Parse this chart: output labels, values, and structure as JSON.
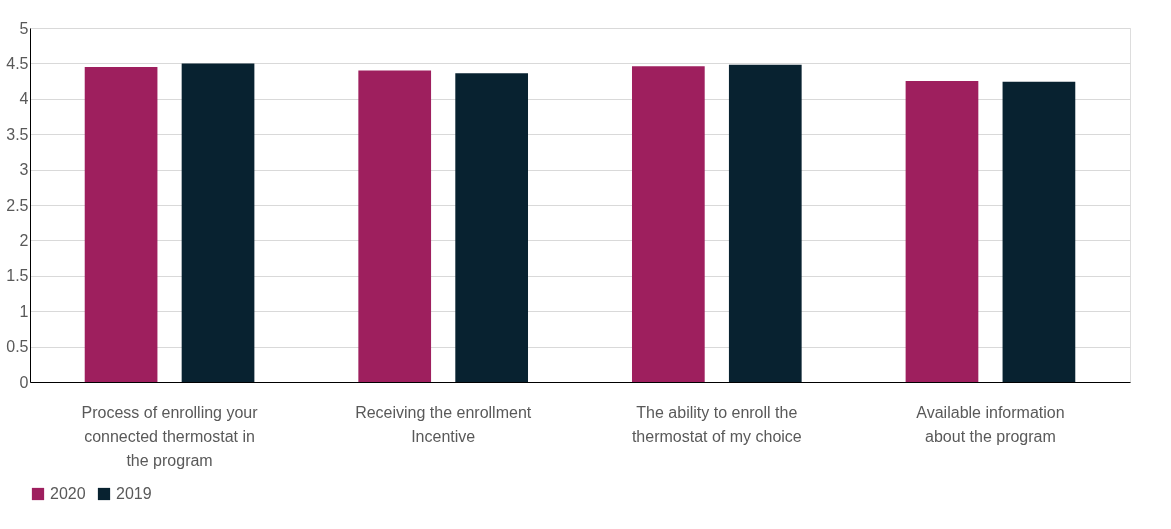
{
  "chart_data": {
    "type": "bar",
    "categories": [
      "Process of enrolling your connected thermostat in the program",
      "Receiving the enrollment Incentive",
      "The ability to enroll the thermostat of my choice",
      "Available information about the program"
    ],
    "series": [
      {
        "name": "2020",
        "color": "#9e1f5e",
        "values": [
          4.45,
          4.4,
          4.46,
          4.25
        ]
      },
      {
        "name": "2019",
        "color": "#082230",
        "values": [
          4.5,
          4.36,
          4.48,
          4.24
        ]
      }
    ],
    "ylim": [
      0,
      5
    ],
    "yticks": [
      0,
      0.5,
      1,
      1.5,
      2,
      2.5,
      3,
      3.5,
      4,
      4.5,
      5
    ],
    "grid": "y",
    "legend": "bottom"
  }
}
